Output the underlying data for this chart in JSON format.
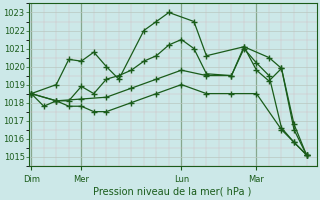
{
  "title": "Pression niveau de la mer( hPa )",
  "background_color": "#cce8e8",
  "plot_bg_color": "#cce8e8",
  "grid_major_color": "#b8c8c0",
  "grid_minor_color": "#d4b8c0",
  "line_color": "#1a5c1a",
  "ylim": [
    1014.5,
    1023.5
  ],
  "yticks": [
    1015,
    1016,
    1017,
    1018,
    1019,
    1020,
    1021,
    1022,
    1023
  ],
  "day_labels": [
    "Dim",
    "Mer",
    "Lun",
    "Mar"
  ],
  "day_positions": [
    0.0,
    2.0,
    6.0,
    9.0
  ],
  "xlim": [
    -0.1,
    11.4
  ],
  "lines": [
    {
      "x": [
        0.0,
        1.0,
        1.5,
        2.0,
        2.5,
        3.0,
        3.5,
        4.5,
        5.0,
        5.5,
        6.5,
        7.0,
        8.5,
        9.5,
        10.0,
        10.5,
        11.0
      ],
      "y": [
        1018.5,
        1019.0,
        1020.4,
        1020.3,
        1020.8,
        1020.0,
        1019.3,
        1022.0,
        1022.5,
        1023.0,
        1022.5,
        1020.6,
        1021.1,
        1020.5,
        1019.9,
        1016.5,
        1015.1
      ]
    },
    {
      "x": [
        0.0,
        1.0,
        1.5,
        2.0,
        2.5,
        3.0,
        3.5,
        4.0,
        4.5,
        5.0,
        5.5,
        6.0,
        6.5,
        7.0,
        8.0,
        8.5,
        9.0,
        9.5,
        10.0,
        10.5,
        11.0
      ],
      "y": [
        1018.5,
        1018.1,
        1018.1,
        1018.9,
        1018.5,
        1019.3,
        1019.5,
        1019.8,
        1020.3,
        1020.6,
        1021.2,
        1021.5,
        1021.0,
        1019.6,
        1019.5,
        1021.0,
        1020.2,
        1019.5,
        1016.6,
        1015.8,
        1015.1
      ]
    },
    {
      "x": [
        0.0,
        1.0,
        2.0,
        3.0,
        4.0,
        5.0,
        6.0,
        7.0,
        8.0,
        8.5,
        9.0,
        9.5,
        10.0,
        10.5,
        11.0
      ],
      "y": [
        1018.5,
        1018.1,
        1018.2,
        1018.3,
        1018.8,
        1019.3,
        1019.8,
        1019.5,
        1019.5,
        1021.1,
        1019.8,
        1019.2,
        1019.9,
        1016.8,
        1015.1
      ]
    },
    {
      "x": [
        0.0,
        0.5,
        1.0,
        1.5,
        2.0,
        2.5,
        3.0,
        4.0,
        5.0,
        6.0,
        7.0,
        8.0,
        9.0,
        10.0,
        10.5,
        11.0
      ],
      "y": [
        1018.5,
        1017.8,
        1018.1,
        1017.8,
        1017.8,
        1017.5,
        1017.5,
        1018.0,
        1018.5,
        1019.0,
        1018.5,
        1018.5,
        1018.5,
        1016.5,
        1015.8,
        1015.1
      ]
    }
  ]
}
